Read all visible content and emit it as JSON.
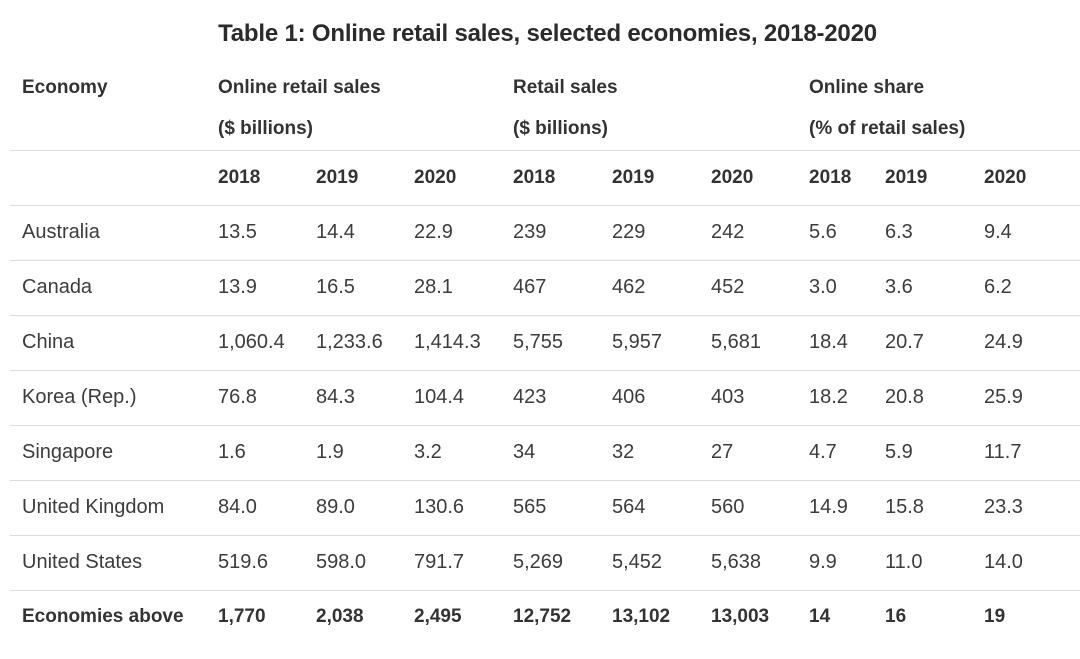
{
  "title": "Table 1: Online retail sales, selected economies, 2018-2020",
  "headers": {
    "economy": "Economy",
    "group1_line1": "Online retail sales",
    "group1_line2": "($ billions)",
    "group2_line1": "Retail sales",
    "group2_line2": "($ billions)",
    "group3_line1": "Online share",
    "group3_line2": "(% of retail sales)"
  },
  "years": [
    "2018",
    "2019",
    "2020",
    "2018",
    "2019",
    "2020",
    "2018",
    "2019",
    "2020"
  ],
  "rows": [
    {
      "economy": "Australia",
      "values": [
        "13.5",
        "14.4",
        "22.9",
        "239",
        "229",
        "242",
        "5.6",
        "6.3",
        "9.4"
      ]
    },
    {
      "economy": "Canada",
      "values": [
        "13.9",
        "16.5",
        "28.1",
        "467",
        "462",
        "452",
        "3.0",
        "3.6",
        "6.2"
      ]
    },
    {
      "economy": "China",
      "values": [
        "1,060.4",
        "1,233.6",
        "1,414.3",
        "5,755",
        "5,957",
        "5,681",
        "18.4",
        "20.7",
        "24.9"
      ]
    },
    {
      "economy": "Korea (Rep.)",
      "values": [
        "76.8",
        "84.3",
        "104.4",
        "423",
        "406",
        "403",
        "18.2",
        "20.8",
        "25.9"
      ]
    },
    {
      "economy": "Singapore",
      "values": [
        "1.6",
        "1.9",
        "3.2",
        "34",
        "32",
        "27",
        "4.7",
        "5.9",
        "11.7"
      ]
    },
    {
      "economy": "United Kingdom",
      "values": [
        "84.0",
        "89.0",
        "130.6",
        "565",
        "564",
        "560",
        "14.9",
        "15.8",
        "23.3"
      ]
    },
    {
      "economy": "United States",
      "values": [
        "519.6",
        "598.0",
        "791.7",
        "5,269",
        "5,452",
        "5,638",
        "9.9",
        "11.0",
        "14.0"
      ]
    }
  ],
  "total": {
    "economy": "Economies above",
    "values": [
      "1,770",
      "2,038",
      "2,495",
      "12,752",
      "13,102",
      "13,003",
      "14",
      "16",
      "19"
    ]
  }
}
